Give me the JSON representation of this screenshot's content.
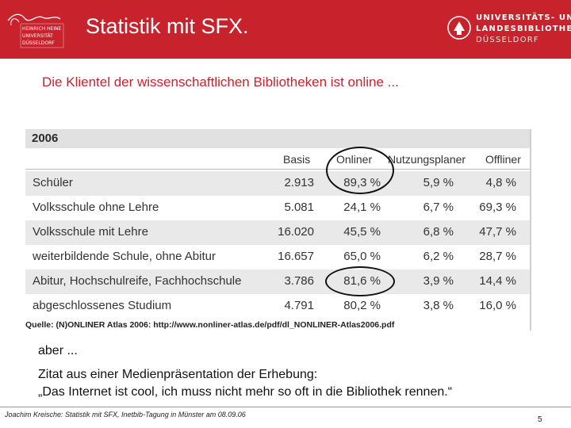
{
  "header": {
    "title": "Statistik mit SFX.",
    "left_logo_text": [
      "HEINRICH HEINE",
      "UNIVERSITÄT",
      "DÜSSELDORF"
    ],
    "right_logo_lines": [
      "UNIVERSITÄTS- UND",
      "LANDESBIBLIOTHEK",
      "DÜSSELDORF"
    ],
    "colors": {
      "brand": "#c8232c",
      "header_text": "#ffffff"
    }
  },
  "subtitle": "Die Klientel der wissenschaftlichen Bibliotheken ist online ...",
  "table": {
    "year": "2006",
    "columns": [
      "Basis",
      "Onliner",
      "Nutzungsplaner",
      "Offliner"
    ],
    "rows": [
      {
        "label": "Schüler",
        "basis": "2.913",
        "onliner": "89,3 %",
        "nutzungsplaner": "5,9 %",
        "offliner": "4,8 %"
      },
      {
        "label": "Volksschule ohne Lehre",
        "basis": "5.081",
        "onliner": "24,1 %",
        "nutzungsplaner": "6,7 %",
        "offliner": "69,3 %"
      },
      {
        "label": "Volksschule mit Lehre",
        "basis": "16.020",
        "onliner": "45,5 %",
        "nutzungsplaner": "6,8 %",
        "offliner": "47,7 %"
      },
      {
        "label": "weiterbildende Schule, ohne Abitur",
        "basis": "16.657",
        "onliner": "65,0 %",
        "nutzungsplaner": "6,2 %",
        "offliner": "28,7 %"
      },
      {
        "label": "Abitur, Hochschulreife, Fachhochschule",
        "basis": "3.786",
        "onliner": "81,6 %",
        "nutzungsplaner": "3,9 %",
        "offliner": "14,4 %"
      },
      {
        "label": "abgeschlossenes Studium",
        "basis": "4.791",
        "onliner": "80,2 %",
        "nutzungsplaner": "3,8 %",
        "offliner": "16,0 %"
      }
    ],
    "source": "Quelle: (N)ONLINER Atlas 2006: http://www.nonliner-atlas.de/pdf/dl_NONLINER-Atlas2006.pdf"
  },
  "body": {
    "aber": "aber ...",
    "zitat_line1": "Zitat aus einer Medienpräsentation der Erhebung:",
    "zitat_line2": "„Das Internet ist cool, ich muss nicht mehr so oft in die Bibliothek rennen.“"
  },
  "footer": {
    "text": "Joachim Kreische: Statistik mit SFX, Inetbib-Tagung in Münster am 08.09.06",
    "page": "5"
  }
}
